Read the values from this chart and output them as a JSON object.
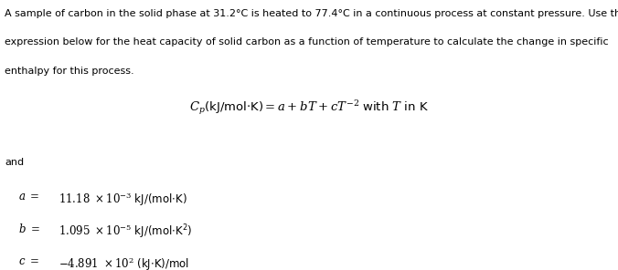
{
  "bg_color": "#ffffff",
  "text_color": "#000000",
  "para_line1": "A sample of carbon in the solid phase at 31.2°C is heated to 77.4°C in a continuous process at constant pressure. Use the",
  "para_line2": "expression below for the heat capacity of solid carbon as a function of temperature to calculate the change in specific",
  "para_line3": "enthalpy for this process.",
  "and_text": "and",
  "figsize": [
    6.76,
    2.96
  ],
  "dpi": 100,
  "fs_para": 8.0,
  "fs_formula": 9.5,
  "fs_var": 8.5
}
